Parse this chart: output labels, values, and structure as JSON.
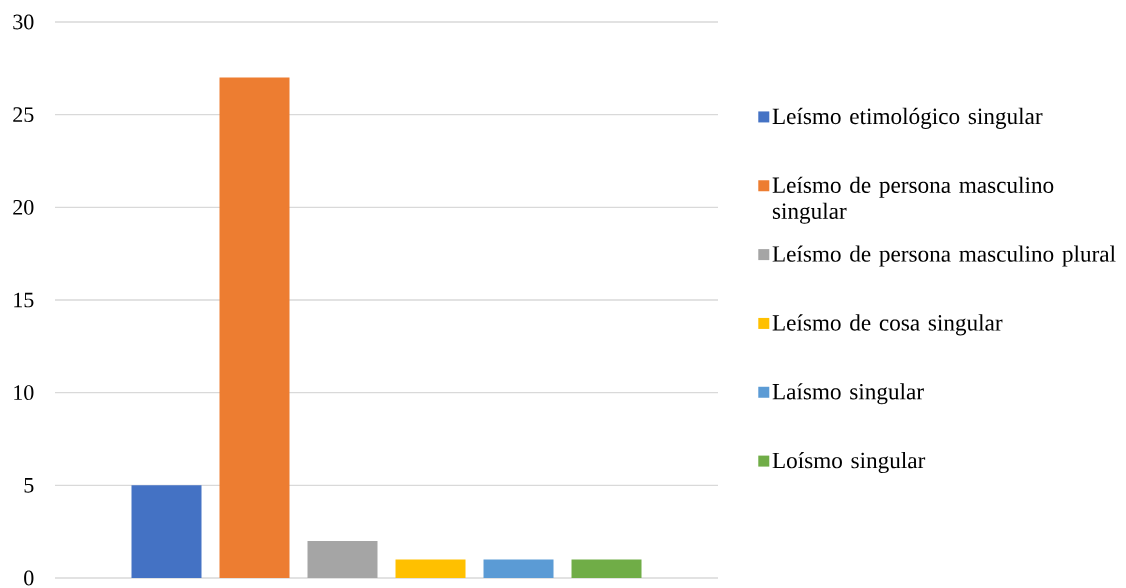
{
  "chart_data": {
    "type": "bar",
    "categories": [
      null
    ],
    "series": [
      {
        "name": "Leísmo etimológico singular",
        "color": "#4472c4",
        "values": [
          5
        ]
      },
      {
        "name": "Leísmo de persona masculino singular",
        "color": "#ed7d31",
        "values": [
          27
        ]
      },
      {
        "name": "Leísmo de persona masculino plural",
        "color": "#a5a5a5",
        "values": [
          2
        ]
      },
      {
        "name": "Leísmo de cosa singular",
        "color": "#ffc000",
        "values": [
          1
        ]
      },
      {
        "name": "Laísmo singular",
        "color": "#5b9bd5",
        "values": [
          1
        ]
      },
      {
        "name": "Loísmo singular",
        "color": "#70ad47",
        "values": [
          1
        ]
      }
    ],
    "ylim": [
      0,
      30
    ],
    "yticks": [
      0,
      5,
      10,
      15,
      20,
      25,
      30
    ],
    "grid": "y",
    "legend": "right"
  }
}
